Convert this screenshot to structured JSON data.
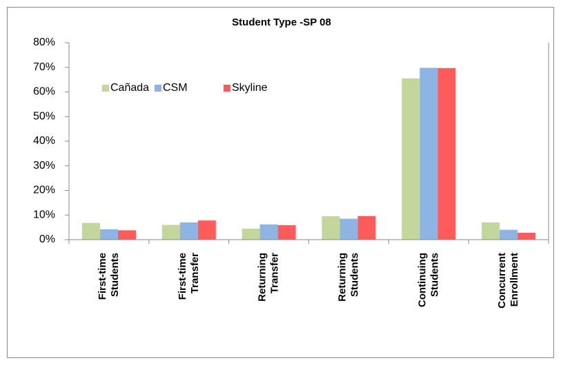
{
  "chart_data": {
    "type": "bar",
    "title": "Student Type -SP 08",
    "categories": [
      "First-time Students",
      "First-time Transfer",
      "Returning Transfer",
      "Returning Students",
      "Continuing Students",
      "Concurrent Enrollment"
    ],
    "series": [
      {
        "name": "Cañada",
        "color": "#c3d69b",
        "values": [
          6.8,
          6.0,
          4.5,
          9.5,
          65.5,
          7.0
        ]
      },
      {
        "name": "CSM",
        "color": "#8eb4e3",
        "values": [
          4.2,
          7.0,
          6.2,
          8.5,
          69.8,
          4.0
        ]
      },
      {
        "name": "Skyline",
        "color": "#ff5b5b",
        "values": [
          3.8,
          7.8,
          5.9,
          9.6,
          69.7,
          2.8
        ]
      }
    ],
    "ylim": [
      0,
      80
    ],
    "yticks": [
      {
        "value": 0,
        "label": "0%"
      },
      {
        "value": 10,
        "label": "10%"
      },
      {
        "value": 20,
        "label": "20%"
      },
      {
        "value": 30,
        "label": "30%"
      },
      {
        "value": 40,
        "label": "40%"
      },
      {
        "value": 50,
        "label": "50%"
      },
      {
        "value": 60,
        "label": "60%"
      },
      {
        "value": 70,
        "label": "70%"
      },
      {
        "value": 80,
        "label": "80%"
      }
    ],
    "grid": false,
    "legend": "upper-left"
  }
}
